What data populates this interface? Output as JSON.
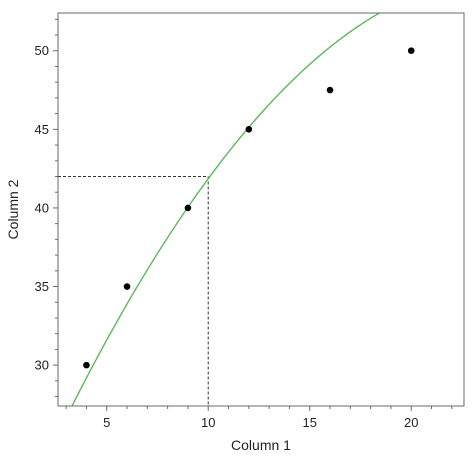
{
  "chart_data": {
    "type": "scatter",
    "xlabel": "Column 1",
    "ylabel": "Column 2",
    "xlim": [
      2.6,
      22.6
    ],
    "ylim": [
      27.4,
      52.4
    ],
    "x_ticks": [
      5,
      10,
      15,
      20
    ],
    "y_ticks": [
      30,
      35,
      40,
      45,
      50
    ],
    "grid": false,
    "points": [
      {
        "x": 4,
        "y": 30
      },
      {
        "x": 6,
        "y": 35
      },
      {
        "x": 9,
        "y": 40
      },
      {
        "x": 12,
        "y": 45
      },
      {
        "x": 16,
        "y": 47.5
      },
      {
        "x": 20,
        "y": 50
      }
    ],
    "fit_curve": {
      "type": "quadratic",
      "a": 18.34,
      "b": 2.95,
      "c": -0.0598,
      "x_range": [
        2.6,
        22.6
      ]
    },
    "reference_point": {
      "x": 10,
      "y": 42
    },
    "colors": {
      "fit_line": "#5cb85c",
      "points": "#000000",
      "axes": "#6a6a6a",
      "reference_lines": "#333333"
    }
  }
}
